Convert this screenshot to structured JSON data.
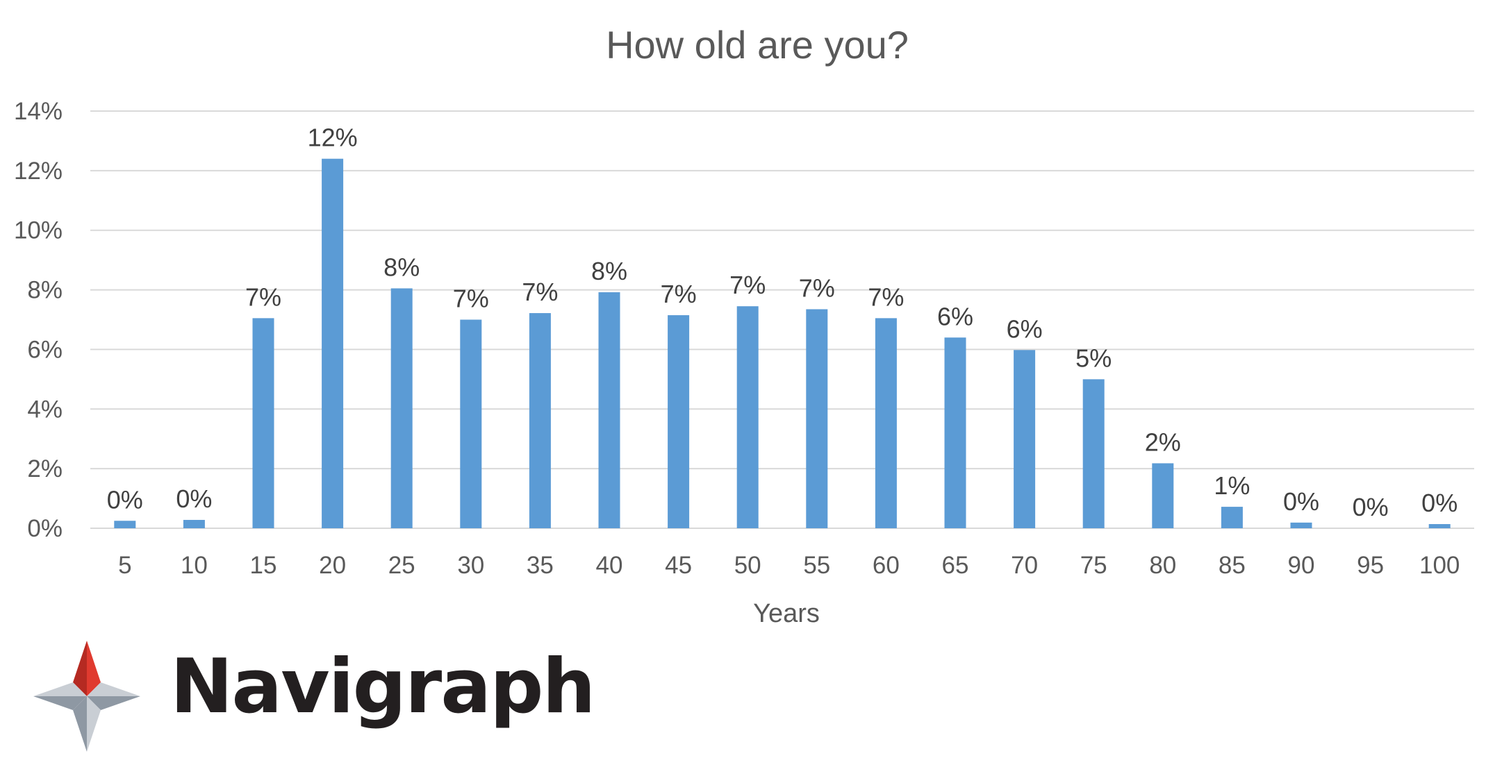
{
  "chart_data": {
    "type": "bar",
    "title": "How old are you?",
    "xlabel": "Years",
    "ylabel": "",
    "ylim": [
      0,
      0.14
    ],
    "yticks": [
      "0%",
      "2%",
      "4%",
      "6%",
      "8%",
      "10%",
      "12%",
      "14%"
    ],
    "ytick_values": [
      0,
      0.02,
      0.04,
      0.06,
      0.08,
      0.1,
      0.12,
      0.14
    ],
    "grid": true,
    "legend": "none",
    "categories": [
      "5",
      "10",
      "15",
      "20",
      "25",
      "30",
      "35",
      "40",
      "45",
      "50",
      "55",
      "60",
      "65",
      "70",
      "75",
      "80",
      "85",
      "90",
      "95",
      "100"
    ],
    "values": [
      0.0025,
      0.0028,
      0.0705,
      0.124,
      0.0805,
      0.07,
      0.0722,
      0.0792,
      0.0715,
      0.0745,
      0.0735,
      0.0705,
      0.064,
      0.0598,
      0.05,
      0.0218,
      0.0072,
      0.0019,
      0.0,
      0.0014
    ],
    "data_labels": [
      "0%",
      "0%",
      "7%",
      "12%",
      "8%",
      "7%",
      "7%",
      "8%",
      "7%",
      "7%",
      "7%",
      "7%",
      "6%",
      "6%",
      "5%",
      "2%",
      "1%",
      "0%",
      "0%",
      "0%"
    ],
    "bar_color": "#5b9bd5"
  },
  "logo": {
    "text": "Navigraph",
    "icon": "navigraph-compass-star-icon",
    "colors": {
      "red": "#e03a2f",
      "dark_red": "#b52a22",
      "gray": "#8e98a3",
      "light_gray": "#c9ced4"
    }
  }
}
